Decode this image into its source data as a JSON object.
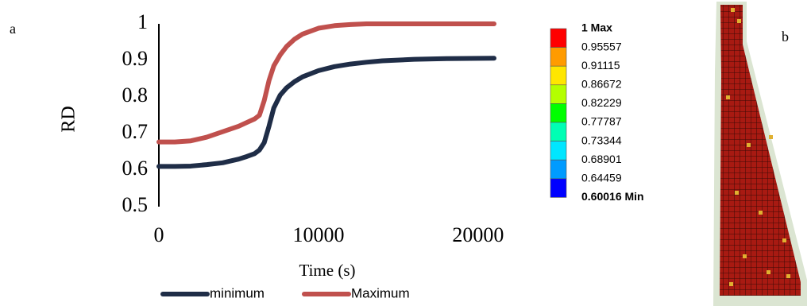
{
  "chart_data": {
    "type": "line",
    "x": [
      0,
      1000,
      2000,
      3000,
      4000,
      5000,
      5500,
      6000,
      6300,
      6600,
      6900,
      7200,
      7600,
      8000,
      8500,
      9000,
      10000,
      11000,
      12000,
      13000,
      14000,
      16000,
      18000,
      21000
    ],
    "series": [
      {
        "name": "minimum",
        "color": "#1f2d47",
        "values": [
          0.61,
          0.61,
          0.611,
          0.615,
          0.62,
          0.63,
          0.637,
          0.645,
          0.655,
          0.675,
          0.72,
          0.77,
          0.805,
          0.825,
          0.842,
          0.855,
          0.872,
          0.883,
          0.89,
          0.895,
          0.899,
          0.903,
          0.905,
          0.906
        ]
      },
      {
        "name": "Maximum",
        "color": "#c0504d",
        "values": [
          0.677,
          0.677,
          0.68,
          0.69,
          0.705,
          0.72,
          0.73,
          0.74,
          0.75,
          0.79,
          0.845,
          0.885,
          0.915,
          0.938,
          0.958,
          0.972,
          0.988,
          0.995,
          0.998,
          1,
          1,
          1,
          1,
          1
        ]
      }
    ],
    "xlim": [
      0,
      21000
    ],
    "ylim": [
      0.5,
      1
    ],
    "xticks": [
      0,
      10000,
      20000
    ],
    "yticks": [
      0.5,
      0.6,
      0.7,
      0.8,
      0.9,
      1
    ],
    "xlabel": "Time (s)",
    "ylabel": "RD",
    "legend": "bottom"
  },
  "panels": [
    "a",
    "b"
  ],
  "contour_legend": {
    "labels": [
      "1 Max",
      "0.95557",
      "0.91115",
      "0.86672",
      "0.82229",
      "0.77787",
      "0.73344",
      "0.68901",
      "0.64459",
      "0.60016 Min"
    ],
    "colors": [
      "#ff0000",
      "#ff9b00",
      "#ffe600",
      "#b4ff00",
      "#00ff00",
      "#00ffb4",
      "#00e6ff",
      "#009bff",
      "#0000ff"
    ]
  }
}
